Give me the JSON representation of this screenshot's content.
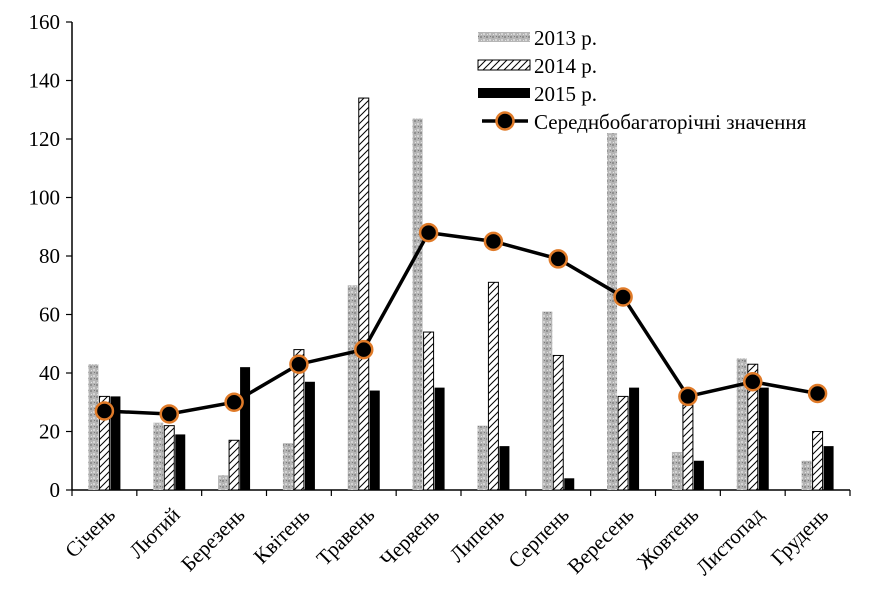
{
  "chart_data": {
    "type": "bar",
    "categories": [
      "Січень",
      "Лютий",
      "Березень",
      "Квітень",
      "Травень",
      "Червень",
      "Липень",
      "Серпень",
      "Вересень",
      "Жовтень",
      "Листопад",
      "Грудень"
    ],
    "series": [
      {
        "name": "2013 р.",
        "type": "bar",
        "color": "#a6a6a6",
        "values": [
          43,
          23,
          5,
          16,
          70,
          127,
          22,
          61,
          122,
          13,
          45,
          10
        ]
      },
      {
        "name": "2014 р.",
        "type": "bar",
        "color": "#ffffff",
        "values": [
          32,
          22,
          17,
          48,
          134,
          54,
          71,
          46,
          32,
          29,
          43,
          20
        ]
      },
      {
        "name": "2015 р.",
        "type": "bar",
        "color": "#000000",
        "values": [
          32,
          19,
          42,
          37,
          34,
          35,
          15,
          4,
          35,
          10,
          35,
          15
        ]
      },
      {
        "name": "Середнбобагаторічні значення",
        "type": "line",
        "color": "#000000",
        "marker_color": "#e07b29",
        "values": [
          27,
          26,
          30,
          43,
          48,
          88,
          85,
          79,
          66,
          32,
          37,
          33
        ]
      }
    ],
    "ylim": [
      0,
      160
    ],
    "yticks": [
      0,
      20,
      40,
      60,
      80,
      100,
      120,
      140,
      160
    ],
    "grid": false,
    "legend_position": "top-right"
  }
}
